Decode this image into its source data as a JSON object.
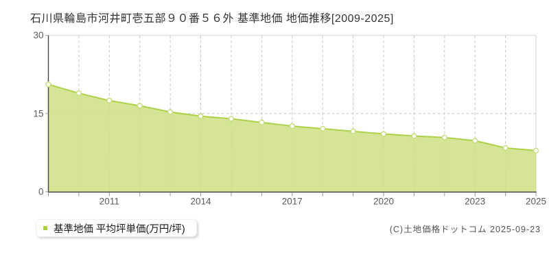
{
  "page": {
    "title": "石川県輪島市河井町壱五部９０番５６外 基準地価 地価推移[2009-2025]",
    "legend": {
      "label": "基準地価 平均坪単価(万円/坪)"
    },
    "copyright": "(C)土地価格ドットコム 2025-09-23"
  },
  "colors": {
    "line": "#aed14b",
    "area_fill": "#cfe183",
    "marker_stroke": "#c6de7d",
    "marker_fill": "#ffffff",
    "grid": "#c9c9c9",
    "axis": "#454545",
    "tick": "#999999",
    "tick_label": "#5a5a5a",
    "plot_border": "#d9d9d9",
    "title_text": "#333333",
    "legend_swatch": "#aad23c"
  },
  "chart_data": {
    "type": "area",
    "title": "石川県輪島市河井町壱五部９０番５６外 基準地価 地価推移[2009-2025]",
    "x": [
      2009,
      2010,
      2011,
      2012,
      2013,
      2014,
      2015,
      2016,
      2017,
      2018,
      2019,
      2020,
      2021,
      2022,
      2023,
      2024,
      2025
    ],
    "series": [
      {
        "name": "基準地価 平均坪単価(万円/坪)",
        "values": [
          20.6,
          18.9,
          17.5,
          16.5,
          15.3,
          14.5,
          14.0,
          13.3,
          12.6,
          12.1,
          11.6,
          11.1,
          10.7,
          10.4,
          9.8,
          8.4,
          7.9
        ]
      }
    ],
    "xlabel": "",
    "ylabel": "",
    "unit": "万円/坪",
    "ylim": [
      0,
      30
    ],
    "y_ticks": [
      0,
      15,
      30
    ],
    "x_tick_years": [
      2011,
      2014,
      2017,
      2020,
      2023,
      2025
    ],
    "grid": "dashed-vertical-per-year-and-horizontal-at-15",
    "legend_position": "bottom-left"
  }
}
